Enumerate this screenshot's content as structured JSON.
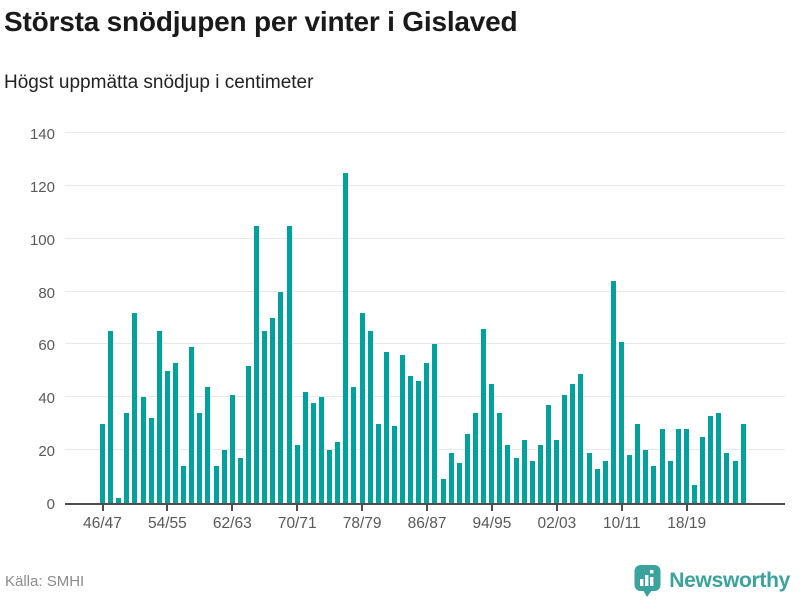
{
  "title": "Största snödjupen per vinter i Gislaved",
  "subtitle": "Högst uppmätta snödjup i centimeter",
  "source": "Källa: SMHI",
  "brand": {
    "name": "Newsworthy",
    "icon": "newsworthy-pin-bar-chart-icon"
  },
  "colors": {
    "bar": "#00a29b",
    "grid": "#e8e8e8",
    "axis": "#4d4d4d",
    "tick_label": "#58595b",
    "title": "#1a1a1a",
    "source": "#8c8c8c",
    "brand": "#3aa39e"
  },
  "chart_data": {
    "type": "bar",
    "title": "Största snödjupen per vinter i Gislaved",
    "subtitle": "Högst uppmätta snödjup i centimeter",
    "xlabel": "",
    "ylabel": "Högst uppmätta snödjup i centimeter",
    "ylim": [
      0,
      140
    ],
    "yticks": [
      0,
      20,
      40,
      60,
      80,
      100,
      120,
      140
    ],
    "grid": true,
    "legend": false,
    "xtick_label_every": 8,
    "xtick_labels": [
      "46/47",
      "54/55",
      "62/63",
      "70/71",
      "78/79",
      "86/87",
      "94/95",
      "02/03",
      "10/11",
      "18/19"
    ],
    "categories": [
      "46/47",
      "47/48",
      "48/49",
      "49/50",
      "50/51",
      "51/52",
      "52/53",
      "53/54",
      "54/55",
      "55/56",
      "56/57",
      "57/58",
      "58/59",
      "59/60",
      "60/61",
      "61/62",
      "62/63",
      "63/64",
      "64/65",
      "65/66",
      "66/67",
      "67/68",
      "68/69",
      "69/70",
      "70/71",
      "71/72",
      "72/73",
      "73/74",
      "74/75",
      "75/76",
      "76/77",
      "77/78",
      "78/79",
      "79/80",
      "80/81",
      "81/82",
      "82/83",
      "83/84",
      "84/85",
      "85/86",
      "86/87",
      "87/88",
      "88/89",
      "89/90",
      "90/91",
      "91/92",
      "92/93",
      "93/94",
      "94/95",
      "95/96",
      "96/97",
      "97/98",
      "98/99",
      "99/00",
      "00/01",
      "01/02",
      "02/03",
      "03/04",
      "04/05",
      "05/06",
      "06/07",
      "07/08",
      "08/09",
      "09/10",
      "10/11",
      "11/12",
      "12/13",
      "13/14",
      "14/15",
      "15/16",
      "16/17",
      "17/18",
      "18/19",
      "19/20",
      "20/21",
      "21/22",
      "22/23",
      "23/24",
      "24/25",
      "25/26"
    ],
    "values": [
      30,
      65,
      2,
      34,
      72,
      40,
      32,
      65,
      50,
      53,
      14,
      59,
      34,
      44,
      14,
      20,
      41,
      17,
      52,
      105,
      65,
      70,
      80,
      105,
      22,
      42,
      38,
      40,
      20,
      23,
      125,
      44,
      72,
      65,
      30,
      57,
      29,
      56,
      48,
      46,
      53,
      60,
      9,
      19,
      15,
      26,
      34,
      66,
      45,
      34,
      22,
      17,
      24,
      16,
      22,
      37,
      24,
      41,
      45,
      49,
      19,
      13,
      16,
      84,
      61,
      18,
      30,
      20,
      14,
      28,
      16,
      28,
      28,
      7,
      25,
      33,
      34,
      19,
      16,
      30
    ]
  }
}
